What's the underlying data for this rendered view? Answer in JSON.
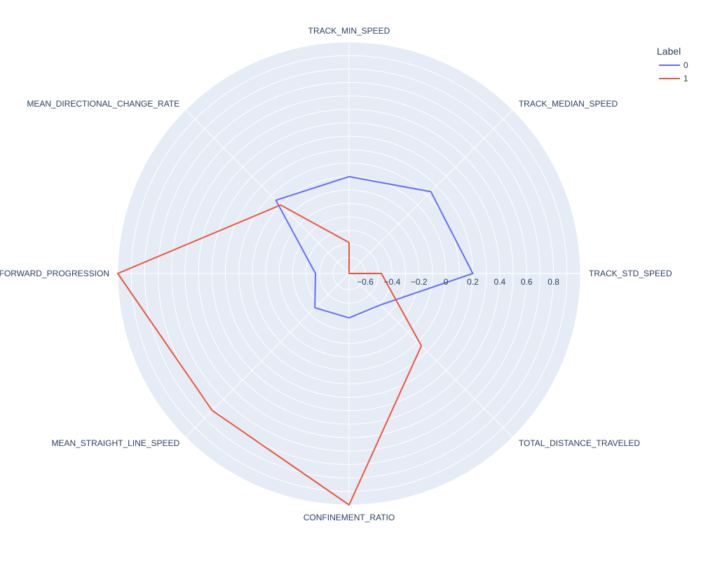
{
  "chart_data": {
    "type": "radar",
    "theta": [
      "TRACK_MIN_SPEED",
      "TRACK_MEDIAN_SPEED",
      "TRACK_STD_SPEED",
      "TOTAL_DISTANCE_TRAVELED",
      "CONFINEMENT_RATIO",
      "MEAN_STRAIGHT_LINE_SPEED",
      "MEAN_FORWARD_PROGRESSION",
      "MEAN_DIRECTIONAL_CHANGE_RATE"
    ],
    "radial_ticks": [
      "−0.6",
      "−0.4",
      "−0.2",
      "0",
      "0.2",
      "0.4",
      "0.6",
      "0.8"
    ],
    "radial_tick_values": [
      -0.6,
      -0.4,
      -0.2,
      0,
      0.2,
      0.4,
      0.6,
      0.8
    ],
    "rrange": [
      -0.72,
      1.0
    ],
    "legend_title": "Label",
    "series": [
      {
        "name": "0",
        "color": "#636efa",
        "values": [
          0.0,
          0.14,
          0.2,
          -0.39,
          -0.39,
          -0.36,
          -0.47,
          0.05
        ]
      },
      {
        "name": "1",
        "color": "#ef553b",
        "values": [
          -0.49,
          -0.72,
          -0.48,
          0.04,
          1.0,
          0.72,
          1.0,
          -0.0
        ]
      }
    ],
    "grid": true,
    "legend_position": "top-right"
  }
}
